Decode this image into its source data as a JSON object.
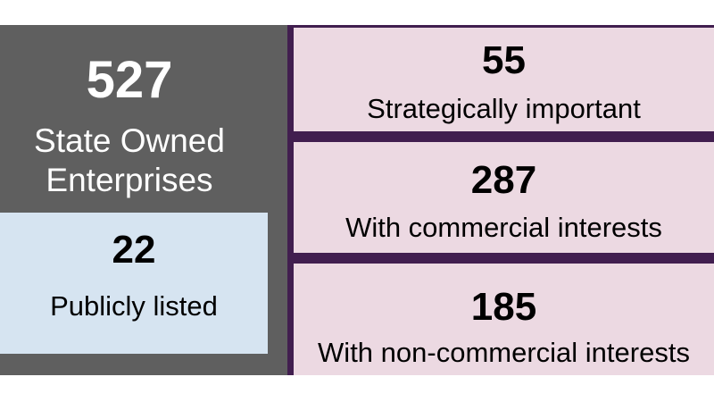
{
  "total": {
    "value": "527",
    "label_line1": "State Owned",
    "label_line2": "Enterprises"
  },
  "listed": {
    "value": "22",
    "label": "Publicly listed"
  },
  "categories": [
    {
      "value": "55",
      "label": "Strategically important"
    },
    {
      "value": "287",
      "label": "With commercial interests"
    },
    {
      "value": "185",
      "label": "With non-commercial interests"
    }
  ],
  "colors": {
    "left_panel": "#5f5f5f",
    "listed_box": "#d6e4f1",
    "right_panel_border": "#411e4f",
    "category_box": "#ecd9e2"
  }
}
